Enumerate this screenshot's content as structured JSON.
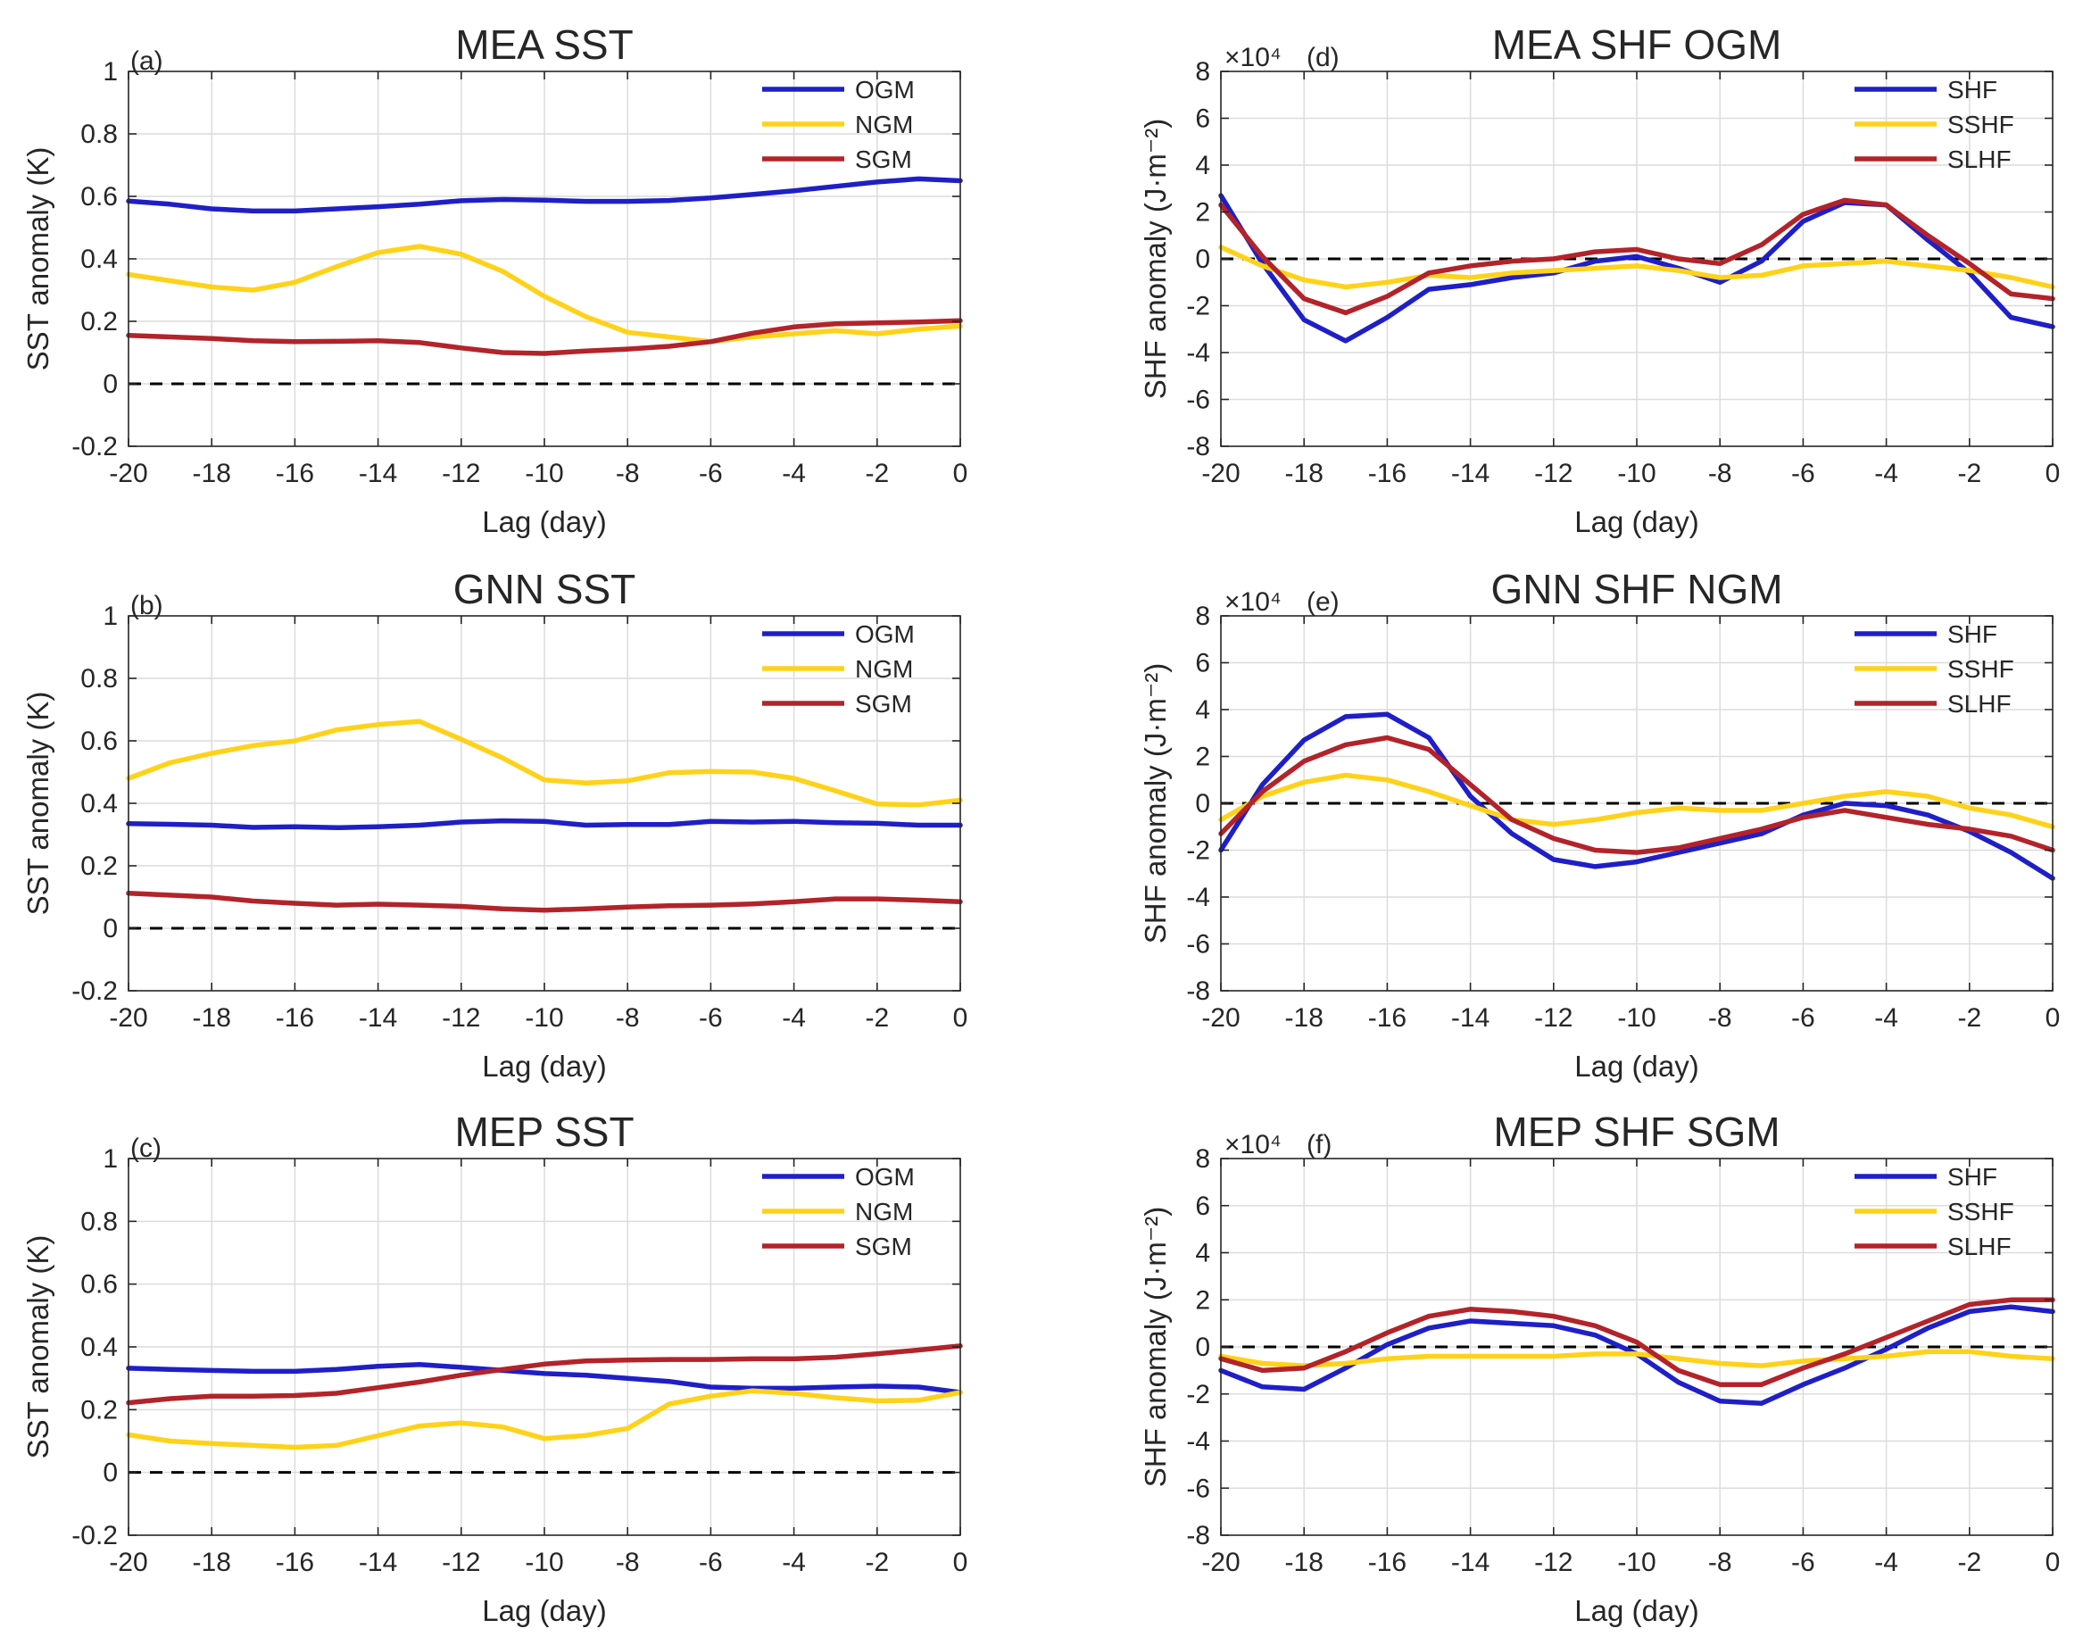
{
  "colors": {
    "blue": "#1f1fc8",
    "yellow": "#ffd21a",
    "red": "#b3232a"
  },
  "chart_data": [
    {
      "type": "line",
      "tag": "(a)",
      "title": "MEA SST",
      "xlabel": "Lag (day)",
      "ylabel": "SST anomaly (K)",
      "exponent": "",
      "xlim": [
        -20,
        0
      ],
      "ylim": [
        -0.2,
        1
      ],
      "xticks": [
        -20,
        -18,
        -16,
        -14,
        -12,
        -10,
        -8,
        -6,
        -4,
        -2,
        0
      ],
      "yticks": [
        -0.2,
        0,
        0.2,
        0.4,
        0.6,
        0.8,
        1
      ],
      "yticklabels": [
        "-0.2",
        "0",
        "0.2",
        "0.4",
        "0.6",
        "0.8",
        "1"
      ],
      "legend_position": "top-right",
      "grid": true,
      "x": [
        -20,
        -19,
        -18,
        -17,
        -16,
        -15,
        -14,
        -13,
        -12,
        -11,
        -10,
        -9,
        -8,
        -7,
        -6,
        -5,
        -4,
        -3,
        -2,
        -1,
        0
      ],
      "series": [
        {
          "name": "OGM",
          "color": "#1f1fc8",
          "values": [
            0.585,
            0.575,
            0.56,
            0.553,
            0.553,
            0.56,
            0.567,
            0.575,
            0.586,
            0.59,
            0.588,
            0.584,
            0.584,
            0.587,
            0.595,
            0.606,
            0.618,
            0.632,
            0.646,
            0.656,
            0.65
          ]
        },
        {
          "name": "NGM",
          "color": "#ffd21a",
          "values": [
            0.35,
            0.33,
            0.31,
            0.3,
            0.325,
            0.375,
            0.42,
            0.44,
            0.415,
            0.36,
            0.28,
            0.215,
            0.165,
            0.15,
            0.135,
            0.15,
            0.16,
            0.17,
            0.16,
            0.175,
            0.185
          ]
        },
        {
          "name": "SGM",
          "color": "#b3232a",
          "values": [
            0.155,
            0.15,
            0.145,
            0.138,
            0.135,
            0.136,
            0.138,
            0.132,
            0.115,
            0.1,
            0.097,
            0.105,
            0.111,
            0.12,
            0.135,
            0.162,
            0.182,
            0.192,
            0.195,
            0.198,
            0.202
          ]
        }
      ]
    },
    {
      "type": "line",
      "tag": "(b)",
      "title": "GNN SST",
      "xlabel": "Lag (day)",
      "ylabel": "SST anomaly (K)",
      "exponent": "",
      "xlim": [
        -20,
        0
      ],
      "ylim": [
        -0.2,
        1
      ],
      "xticks": [
        -20,
        -18,
        -16,
        -14,
        -12,
        -10,
        -8,
        -6,
        -4,
        -2,
        0
      ],
      "yticks": [
        -0.2,
        0,
        0.2,
        0.4,
        0.6,
        0.8,
        1
      ],
      "yticklabels": [
        "-0.2",
        "0",
        "0.2",
        "0.4",
        "0.6",
        "0.8",
        "1"
      ],
      "legend_position": "top-right",
      "grid": true,
      "x": [
        -20,
        -19,
        -18,
        -17,
        -16,
        -15,
        -14,
        -13,
        -12,
        -11,
        -10,
        -9,
        -8,
        -7,
        -6,
        -5,
        -4,
        -3,
        -2,
        -1,
        0
      ],
      "series": [
        {
          "name": "OGM",
          "color": "#1f1fc8",
          "values": [
            0.335,
            0.333,
            0.33,
            0.323,
            0.325,
            0.322,
            0.325,
            0.33,
            0.34,
            0.344,
            0.342,
            0.33,
            0.332,
            0.332,
            0.342,
            0.34,
            0.342,
            0.338,
            0.336,
            0.33,
            0.33
          ]
        },
        {
          "name": "NGM",
          "color": "#ffd21a",
          "values": [
            0.48,
            0.53,
            0.56,
            0.585,
            0.6,
            0.635,
            0.652,
            0.662,
            0.605,
            0.545,
            0.475,
            0.465,
            0.472,
            0.498,
            0.502,
            0.5,
            0.48,
            0.44,
            0.398,
            0.395,
            0.41
          ]
        },
        {
          "name": "SGM",
          "color": "#b3232a",
          "values": [
            0.112,
            0.106,
            0.1,
            0.087,
            0.08,
            0.074,
            0.077,
            0.074,
            0.07,
            0.062,
            0.058,
            0.062,
            0.068,
            0.072,
            0.074,
            0.078,
            0.085,
            0.094,
            0.094,
            0.09,
            0.085
          ]
        }
      ]
    },
    {
      "type": "line",
      "tag": "(c)",
      "title": "MEP SST",
      "xlabel": "Lag (day)",
      "ylabel": "SST anomaly (K)",
      "exponent": "",
      "xlim": [
        -20,
        0
      ],
      "ylim": [
        -0.2,
        1
      ],
      "xticks": [
        -20,
        -18,
        -16,
        -14,
        -12,
        -10,
        -8,
        -6,
        -4,
        -2,
        0
      ],
      "yticks": [
        -0.2,
        0,
        0.2,
        0.4,
        0.6,
        0.8,
        1
      ],
      "yticklabels": [
        "-0.2",
        "0",
        "0.2",
        "0.4",
        "0.6",
        "0.8",
        "1"
      ],
      "legend_position": "top-right",
      "grid": true,
      "x": [
        -20,
        -19,
        -18,
        -17,
        -16,
        -15,
        -14,
        -13,
        -12,
        -11,
        -10,
        -9,
        -8,
        -7,
        -6,
        -5,
        -4,
        -3,
        -2,
        -1,
        0
      ],
      "series": [
        {
          "name": "OGM",
          "color": "#1f1fc8",
          "values": [
            0.332,
            0.328,
            0.325,
            0.322,
            0.322,
            0.328,
            0.338,
            0.344,
            0.335,
            0.325,
            0.315,
            0.31,
            0.3,
            0.29,
            0.272,
            0.268,
            0.268,
            0.272,
            0.275,
            0.272,
            0.255
          ]
        },
        {
          "name": "NGM",
          "color": "#ffd21a",
          "values": [
            0.12,
            0.1,
            0.092,
            0.086,
            0.08,
            0.086,
            0.117,
            0.148,
            0.158,
            0.145,
            0.108,
            0.118,
            0.14,
            0.218,
            0.243,
            0.26,
            0.252,
            0.238,
            0.228,
            0.23,
            0.255
          ]
        },
        {
          "name": "SGM",
          "color": "#b3232a",
          "values": [
            0.222,
            0.235,
            0.243,
            0.243,
            0.245,
            0.252,
            0.27,
            0.288,
            0.31,
            0.328,
            0.345,
            0.355,
            0.358,
            0.36,
            0.36,
            0.362,
            0.362,
            0.367,
            0.378,
            0.39,
            0.403
          ]
        }
      ]
    },
    {
      "type": "line",
      "tag": "(d)",
      "title": "MEA SHF OGM",
      "xlabel": "Lag (day)",
      "ylabel": "SHF anomaly (J·m⁻²)",
      "exponent": "×10⁴",
      "xlim": [
        -20,
        0
      ],
      "ylim": [
        -8,
        8
      ],
      "xticks": [
        -20,
        -18,
        -16,
        -14,
        -12,
        -10,
        -8,
        -6,
        -4,
        -2,
        0
      ],
      "yticks": [
        -8,
        -6,
        -4,
        -2,
        0,
        2,
        4,
        6,
        8
      ],
      "yticklabels": [
        "-8",
        "-6",
        "-4",
        "-2",
        "0",
        "2",
        "4",
        "6",
        "8"
      ],
      "legend_position": "top-right",
      "grid": true,
      "x": [
        -20,
        -19,
        -18,
        -17,
        -16,
        -15,
        -14,
        -13,
        -12,
        -11,
        -10,
        -9,
        -8,
        -7,
        -6,
        -5,
        -4,
        -3,
        -2,
        -1,
        0
      ],
      "series": [
        {
          "name": "SHF",
          "color": "#1f1fc8",
          "values": [
            2.7,
            -0.2,
            -2.6,
            -3.5,
            -2.5,
            -1.3,
            -1.1,
            -0.8,
            -0.6,
            -0.1,
            0.1,
            -0.4,
            -1.0,
            -0.1,
            1.6,
            2.4,
            2.3,
            0.8,
            -0.6,
            -2.5,
            -2.9
          ]
        },
        {
          "name": "SSHF",
          "color": "#ffd21a",
          "values": [
            0.5,
            -0.3,
            -0.9,
            -1.2,
            -1.0,
            -0.7,
            -0.8,
            -0.6,
            -0.5,
            -0.4,
            -0.3,
            -0.5,
            -0.8,
            -0.7,
            -0.3,
            -0.2,
            -0.1,
            -0.3,
            -0.5,
            -0.8,
            -1.2
          ]
        },
        {
          "name": "SLHF",
          "color": "#b3232a",
          "values": [
            2.3,
            0.1,
            -1.7,
            -2.3,
            -1.6,
            -0.6,
            -0.3,
            -0.1,
            0.0,
            0.3,
            0.4,
            0.0,
            -0.2,
            0.6,
            1.9,
            2.5,
            2.3,
            1.0,
            -0.2,
            -1.5,
            -1.7
          ]
        }
      ]
    },
    {
      "type": "line",
      "tag": "(e)",
      "title": "GNN SHF NGM",
      "xlabel": "Lag (day)",
      "ylabel": "SHF anomaly (J·m⁻²)",
      "exponent": "×10⁴",
      "xlim": [
        -20,
        0
      ],
      "ylim": [
        -8,
        8
      ],
      "xticks": [
        -20,
        -18,
        -16,
        -14,
        -12,
        -10,
        -8,
        -6,
        -4,
        -2,
        0
      ],
      "yticks": [
        -8,
        -6,
        -4,
        -2,
        0,
        2,
        4,
        6,
        8
      ],
      "yticklabels": [
        "-8",
        "-6",
        "-4",
        "-2",
        "0",
        "2",
        "4",
        "6",
        "8"
      ],
      "legend_position": "top-right",
      "grid": true,
      "x": [
        -20,
        -19,
        -18,
        -17,
        -16,
        -15,
        -14,
        -13,
        -12,
        -11,
        -10,
        -9,
        -8,
        -7,
        -6,
        -5,
        -4,
        -3,
        -2,
        -1,
        0
      ],
      "series": [
        {
          "name": "SHF",
          "color": "#1f1fc8",
          "values": [
            -2.0,
            0.8,
            2.7,
            3.7,
            3.8,
            2.8,
            0.3,
            -1.3,
            -2.4,
            -2.7,
            -2.5,
            -2.1,
            -1.7,
            -1.3,
            -0.5,
            0.0,
            -0.1,
            -0.5,
            -1.2,
            -2.1,
            -3.2
          ]
        },
        {
          "name": "SSHF",
          "color": "#ffd21a",
          "values": [
            -0.7,
            0.3,
            0.9,
            1.2,
            1.0,
            0.5,
            -0.1,
            -0.7,
            -0.9,
            -0.7,
            -0.4,
            -0.2,
            -0.3,
            -0.3,
            0.0,
            0.3,
            0.5,
            0.3,
            -0.2,
            -0.5,
            -1.0
          ]
        },
        {
          "name": "SLHF",
          "color": "#b3232a",
          "values": [
            -1.3,
            0.5,
            1.8,
            2.5,
            2.8,
            2.3,
            0.8,
            -0.7,
            -1.5,
            -2.0,
            -2.1,
            -1.9,
            -1.5,
            -1.1,
            -0.6,
            -0.3,
            -0.6,
            -0.9,
            -1.1,
            -1.4,
            -2.0
          ]
        }
      ]
    },
    {
      "type": "line",
      "tag": "(f)",
      "title": "MEP SHF SGM",
      "xlabel": "Lag (day)",
      "ylabel": "SHF anomaly (J·m⁻²)",
      "exponent": "×10⁴",
      "xlim": [
        -20,
        0
      ],
      "ylim": [
        -8,
        8
      ],
      "xticks": [
        -20,
        -18,
        -16,
        -14,
        -12,
        -10,
        -8,
        -6,
        -4,
        -2,
        0
      ],
      "yticks": [
        -8,
        -6,
        -4,
        -2,
        0,
        2,
        4,
        6,
        8
      ],
      "yticklabels": [
        "-8",
        "-6",
        "-4",
        "-2",
        "0",
        "2",
        "4",
        "6",
        "8"
      ],
      "legend_position": "top-right",
      "grid": true,
      "x": [
        -20,
        -19,
        -18,
        -17,
        -16,
        -15,
        -14,
        -13,
        -12,
        -11,
        -10,
        -9,
        -8,
        -7,
        -6,
        -5,
        -4,
        -3,
        -2,
        -1,
        0
      ],
      "series": [
        {
          "name": "SHF",
          "color": "#1f1fc8",
          "values": [
            -1.0,
            -1.7,
            -1.8,
            -0.9,
            0.1,
            0.8,
            1.1,
            1.0,
            0.9,
            0.5,
            -0.3,
            -1.5,
            -2.3,
            -2.4,
            -1.6,
            -0.9,
            -0.1,
            0.8,
            1.5,
            1.7,
            1.5
          ]
        },
        {
          "name": "SSHF",
          "color": "#ffd21a",
          "values": [
            -0.4,
            -0.7,
            -0.8,
            -0.7,
            -0.5,
            -0.4,
            -0.4,
            -0.4,
            -0.4,
            -0.3,
            -0.3,
            -0.5,
            -0.7,
            -0.8,
            -0.6,
            -0.5,
            -0.4,
            -0.2,
            -0.2,
            -0.4,
            -0.5
          ]
        },
        {
          "name": "SLHF",
          "color": "#b3232a",
          "values": [
            -0.5,
            -1.0,
            -0.9,
            -0.2,
            0.6,
            1.3,
            1.6,
            1.5,
            1.3,
            0.9,
            0.2,
            -1.0,
            -1.6,
            -1.6,
            -0.9,
            -0.3,
            0.4,
            1.1,
            1.8,
            2.0,
            2.0
          ]
        }
      ]
    }
  ]
}
